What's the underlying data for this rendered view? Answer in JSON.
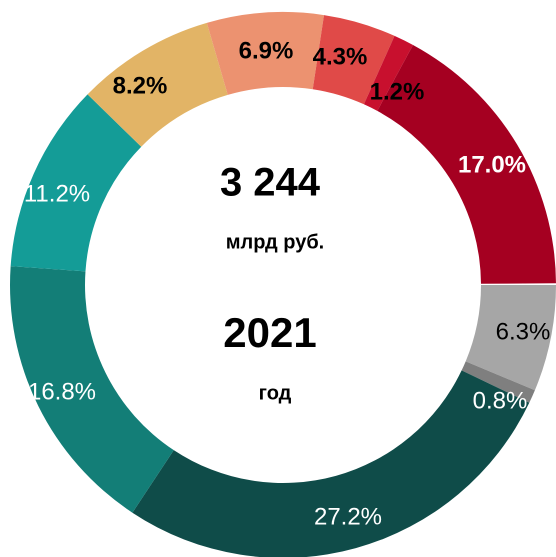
{
  "chart_data": {
    "type": "donut",
    "title": "3 244",
    "subtitle": "млрд руб.",
    "year": "2021",
    "year_label": "год",
    "values": [
      6.3,
      0.8,
      27.2,
      16.8,
      11.2,
      8.2,
      6.9,
      4.3,
      1.2,
      17.0
    ],
    "value_labels": [
      "6.3%",
      "0.8%",
      "27.2%",
      "16.8%",
      "11.2%",
      "8.2%",
      "6.9%",
      "4.3%",
      "1.2%",
      "17.0%"
    ],
    "colors": [
      "#a6a6a6",
      "#7f7f7f",
      "#0f4c49",
      "#137e77",
      "#149c97",
      "#e2b466",
      "#ec9270",
      "#e04a48",
      "#c8102e",
      "#a50021"
    ]
  }
}
